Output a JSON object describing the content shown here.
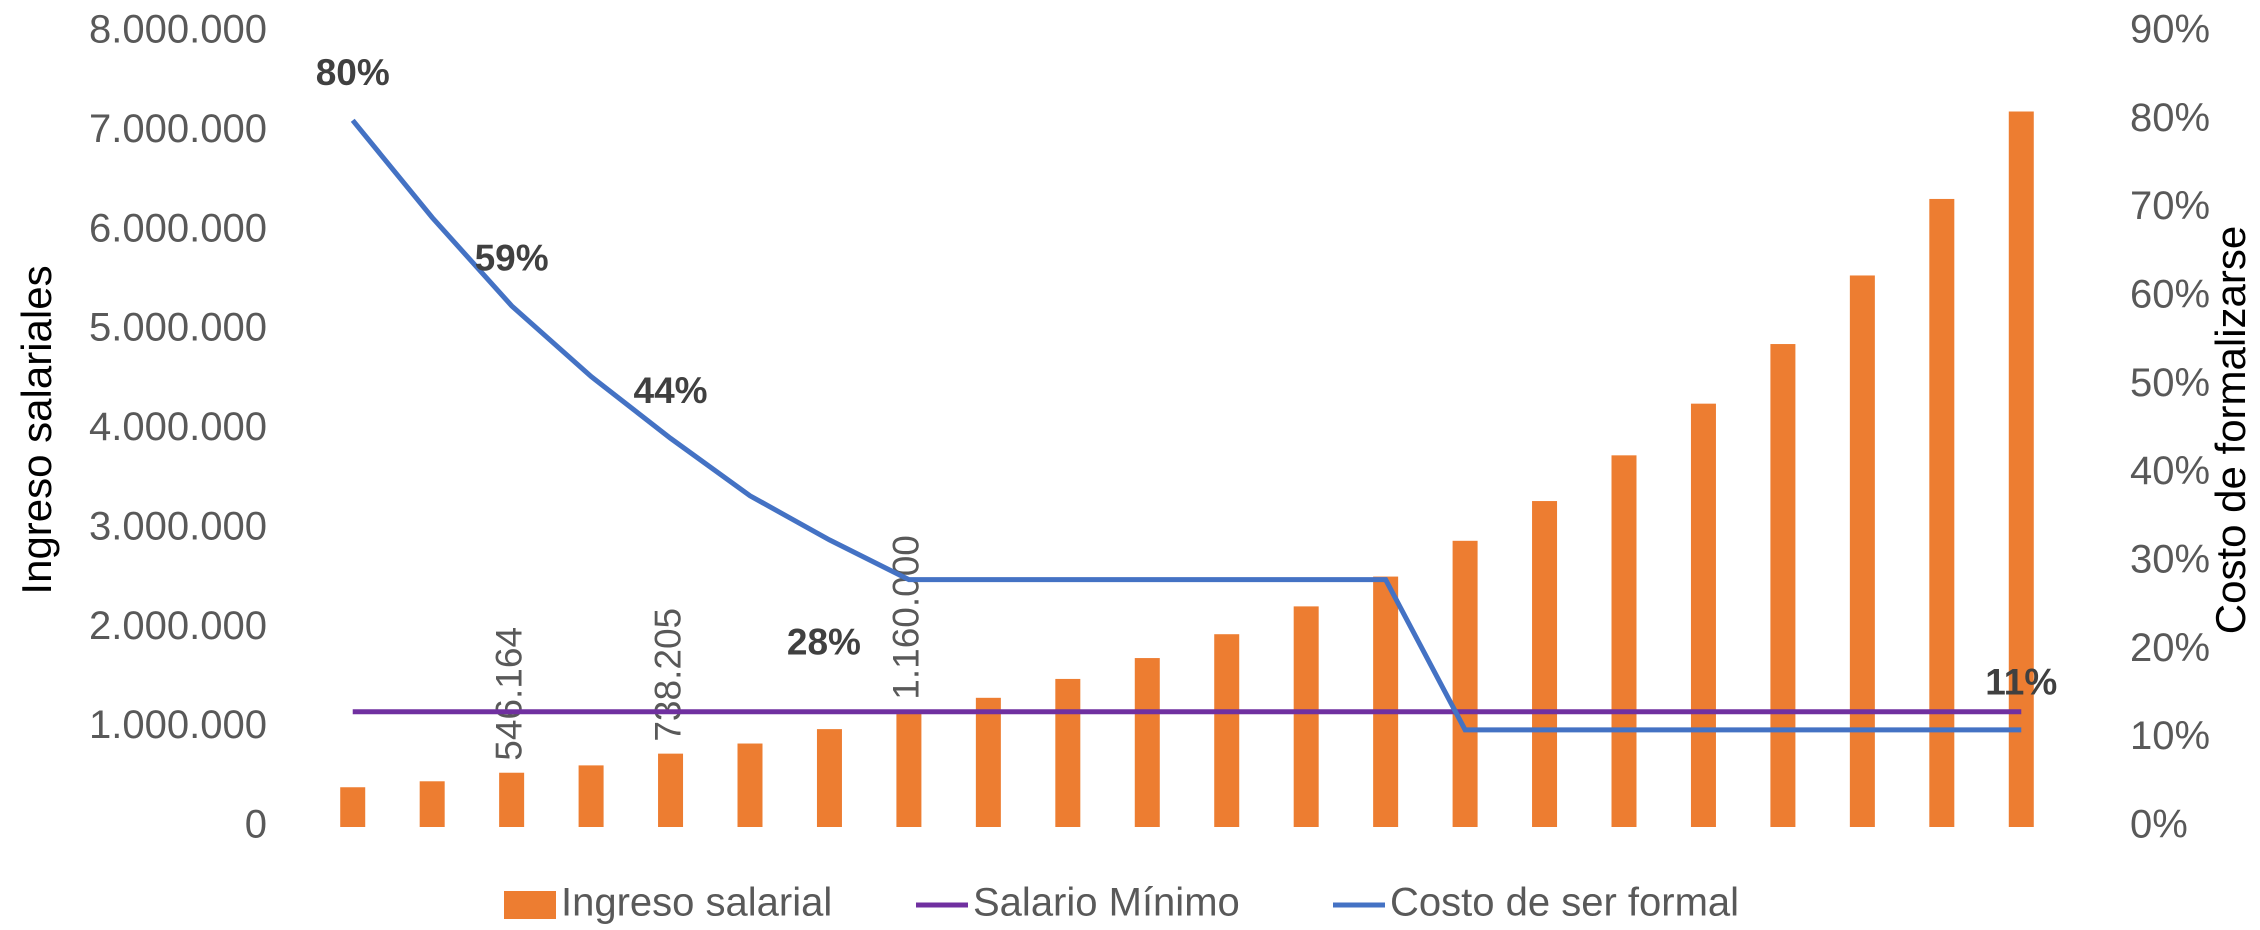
{
  "chart_data": {
    "type": "bar-line",
    "y_label": "Ingreso salariales",
    "y2_label": "Costo de formalizarse",
    "categories": [
      null,
      null,
      null,
      null,
      null,
      null,
      null,
      null,
      null,
      null,
      null,
      null,
      null,
      null,
      null,
      null,
      null,
      null,
      null,
      null,
      null,
      null
    ],
    "series": [
      {
        "name": "Ingreso salarial",
        "type": "bar",
        "color": "#ED7D31",
        "values": [
          400000,
          460000,
          546164,
          620000,
          738205,
          840000,
          985000,
          1160000,
          1300000,
          1490000,
          1700000,
          1940000,
          2220000,
          2520000,
          2880000,
          3280000,
          3740000,
          4260000,
          4860000,
          5550000,
          6320000,
          7200000
        ],
        "value_labels": [
          null,
          null,
          "546.164",
          null,
          "738.205",
          null,
          null,
          "1.160.000",
          null,
          null,
          null,
          null,
          null,
          null,
          null,
          null,
          null,
          null,
          null,
          null,
          null,
          null
        ]
      },
      {
        "name": "Salario Mínimo",
        "type": "line",
        "color": "#7030A0",
        "values": [
          1160000,
          1160000,
          1160000,
          1160000,
          1160000,
          1160000,
          1160000,
          1160000,
          1160000,
          1160000,
          1160000,
          1160000,
          1160000,
          1160000,
          1160000,
          1160000,
          1160000,
          1160000,
          1160000,
          1160000,
          1160000,
          1160000
        ]
      },
      {
        "name": "Costo de ser formal",
        "type": "line",
        "axis": "y2",
        "color": "#4472C4",
        "values": [
          80,
          69,
          59,
          51,
          44,
          37.5,
          32.5,
          28,
          28,
          28,
          28,
          28,
          28,
          28,
          11,
          11,
          11,
          11,
          11,
          11,
          11,
          11
        ],
        "value_labels": [
          "80%",
          null,
          "59%",
          null,
          "44%",
          null,
          null,
          "28%",
          null,
          null,
          null,
          null,
          null,
          null,
          null,
          null,
          null,
          null,
          null,
          null,
          null,
          "11%"
        ]
      }
    ],
    "ylim": [
      0,
      8000000
    ],
    "yticks": [
      0,
      {
        "value": 1000000,
        "label": "1.000.000"
      },
      {
        "value": 2000000,
        "label": "2.000.000"
      },
      {
        "value": 3000000,
        "label": "3.000.000"
      },
      {
        "value": 4000000,
        "label": "4.000.000"
      },
      {
        "value": 5000000,
        "label": "5.000.000"
      },
      {
        "value": 6000000,
        "label": "6.000.000"
      },
      {
        "value": 7000000,
        "label": "7.000.000"
      },
      {
        "value": 8000000,
        "label": "8.000.000"
      }
    ],
    "y2lim": [
      0,
      90
    ],
    "y2ticks": [
      {
        "value": 0,
        "label": "0%"
      },
      {
        "value": 10,
        "label": "10%"
      },
      {
        "value": 20,
        "label": "20%"
      },
      {
        "value": 30,
        "label": "30%"
      },
      {
        "value": 40,
        "label": "40%"
      },
      {
        "value": 50,
        "label": "50%"
      },
      {
        "value": 60,
        "label": "60%"
      },
      {
        "value": 70,
        "label": "70%"
      },
      {
        "value": 80,
        "label": "80%"
      },
      {
        "value": 90,
        "label": "90%"
      }
    ],
    "legend": "bottom"
  }
}
